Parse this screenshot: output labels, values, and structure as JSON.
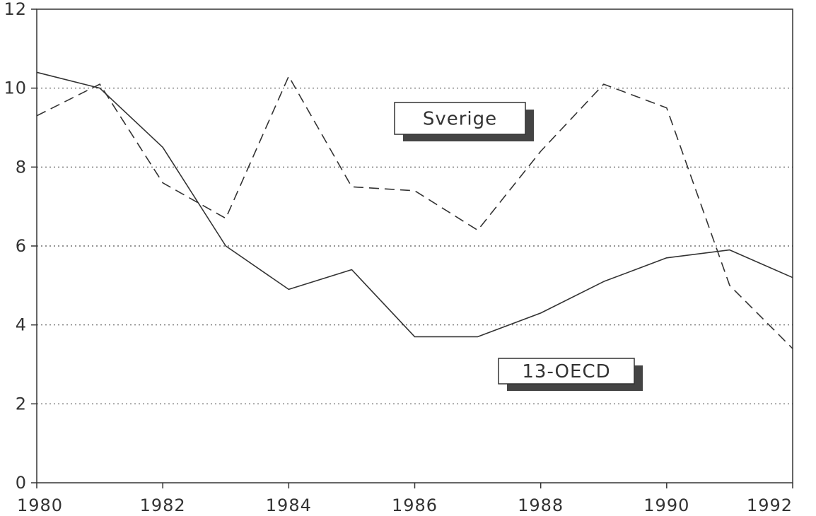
{
  "chart_data": {
    "type": "line",
    "title": "",
    "xlabel": "",
    "ylabel": "",
    "x": [
      1980,
      1981,
      1982,
      1983,
      1984,
      1985,
      1986,
      1987,
      1988,
      1989,
      1990,
      1991,
      1992
    ],
    "xlim": [
      1980,
      1992
    ],
    "ylim": [
      0,
      12
    ],
    "x_ticks": [
      "1980",
      "1982",
      "1984",
      "1986",
      "1988",
      "1990",
      "1992"
    ],
    "y_ticks": [
      "0",
      "2",
      "4",
      "6",
      "8",
      "10",
      "12"
    ],
    "grid": "horizontal dotted",
    "series": [
      {
        "name": "Sverige",
        "style": "dashed",
        "values": [
          9.3,
          10.1,
          7.6,
          6.7,
          10.3,
          7.5,
          7.4,
          6.4,
          8.4,
          10.1,
          9.5,
          5.0,
          3.4
        ]
      },
      {
        "name": "13-OECD",
        "style": "solid",
        "values": [
          10.4,
          10.0,
          8.5,
          6.0,
          4.9,
          5.4,
          3.7,
          3.7,
          4.3,
          5.1,
          5.7,
          5.9,
          5.2
        ]
      }
    ],
    "colors": {
      "line": "#333333",
      "axis": "#333333",
      "grid": "#555555",
      "shadow": "#444444"
    }
  }
}
